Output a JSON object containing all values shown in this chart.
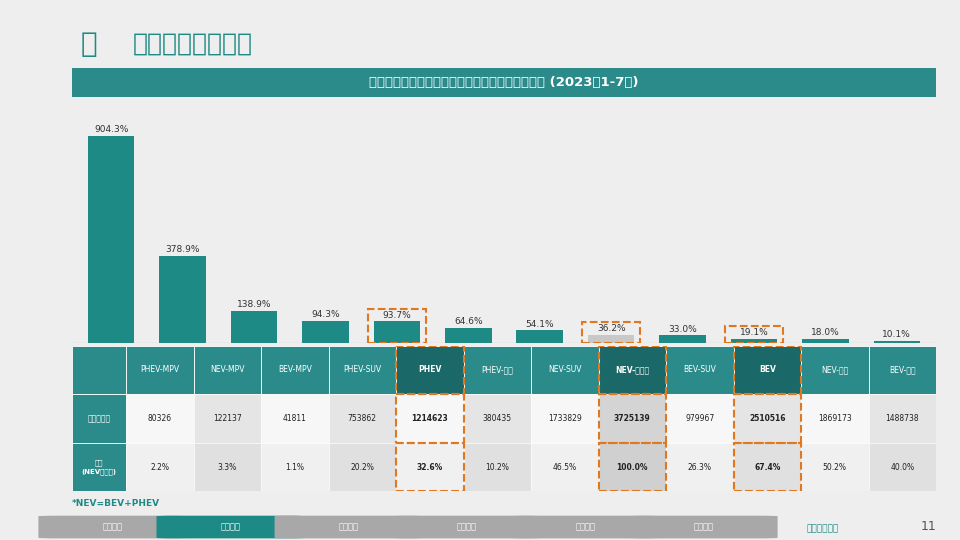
{
  "title": "新能源市场各车型不同技术类型增速、销量和份额 (2023年1-7月)",
  "page_title": "车型大类细分市场",
  "background_color": "#eeeeee",
  "title_bg_color": "#2b8a8a",
  "title_text_color": "#ffffff",
  "bar_color": "#1e8a85",
  "gray_bar_color": "#c8c8c8",
  "categories": [
    "PHEV-MPV",
    "NEV-MPV",
    "BEV-MPV",
    "PHEV-SUV",
    "PHEV",
    "PHEV-轿车",
    "NEV-SUV",
    "NEV-总市场",
    "BEV-SUV",
    "BEV",
    "NEV-轿车",
    "BEV-轿车"
  ],
  "values": [
    904.3,
    378.9,
    138.9,
    94.3,
    93.7,
    64.6,
    54.1,
    36.2,
    33.0,
    19.1,
    18.0,
    10.1
  ],
  "sales": [
    "80326",
    "122137",
    "41811",
    "753862",
    "1214623",
    "380435",
    "1733829",
    "3725139",
    "979967",
    "2510516",
    "1869173",
    "1488738"
  ],
  "shares": [
    "2.2%",
    "3.3%",
    "1.1%",
    "20.2%",
    "32.6%",
    "10.2%",
    "46.5%",
    "100.0%",
    "26.3%",
    "67.4%",
    "50.2%",
    "40.0%"
  ],
  "highlight_orange": [
    4,
    7,
    9
  ],
  "gray_bar_index": 7,
  "note": "*NEV=BEV+PHEV",
  "tab_labels": [
    "技术类别",
    "车型大类",
    "品牌定位",
    "细分定位",
    "价格定位",
    "企业竞争"
  ],
  "active_tab": "车型大类",
  "teal_color": "#1e8a85",
  "orange_dash_color": "#e07820",
  "header_bg": "#2b8a8a",
  "header_dark_bg": "#1a6868",
  "row_label_bg": "#2b8a8a",
  "bold_cols": [
    4,
    7,
    9
  ],
  "row1_label": "销量（辆）",
  "row2_label": "份额\n(NEV总市场)",
  "deep_analysis": "深度分析报告"
}
